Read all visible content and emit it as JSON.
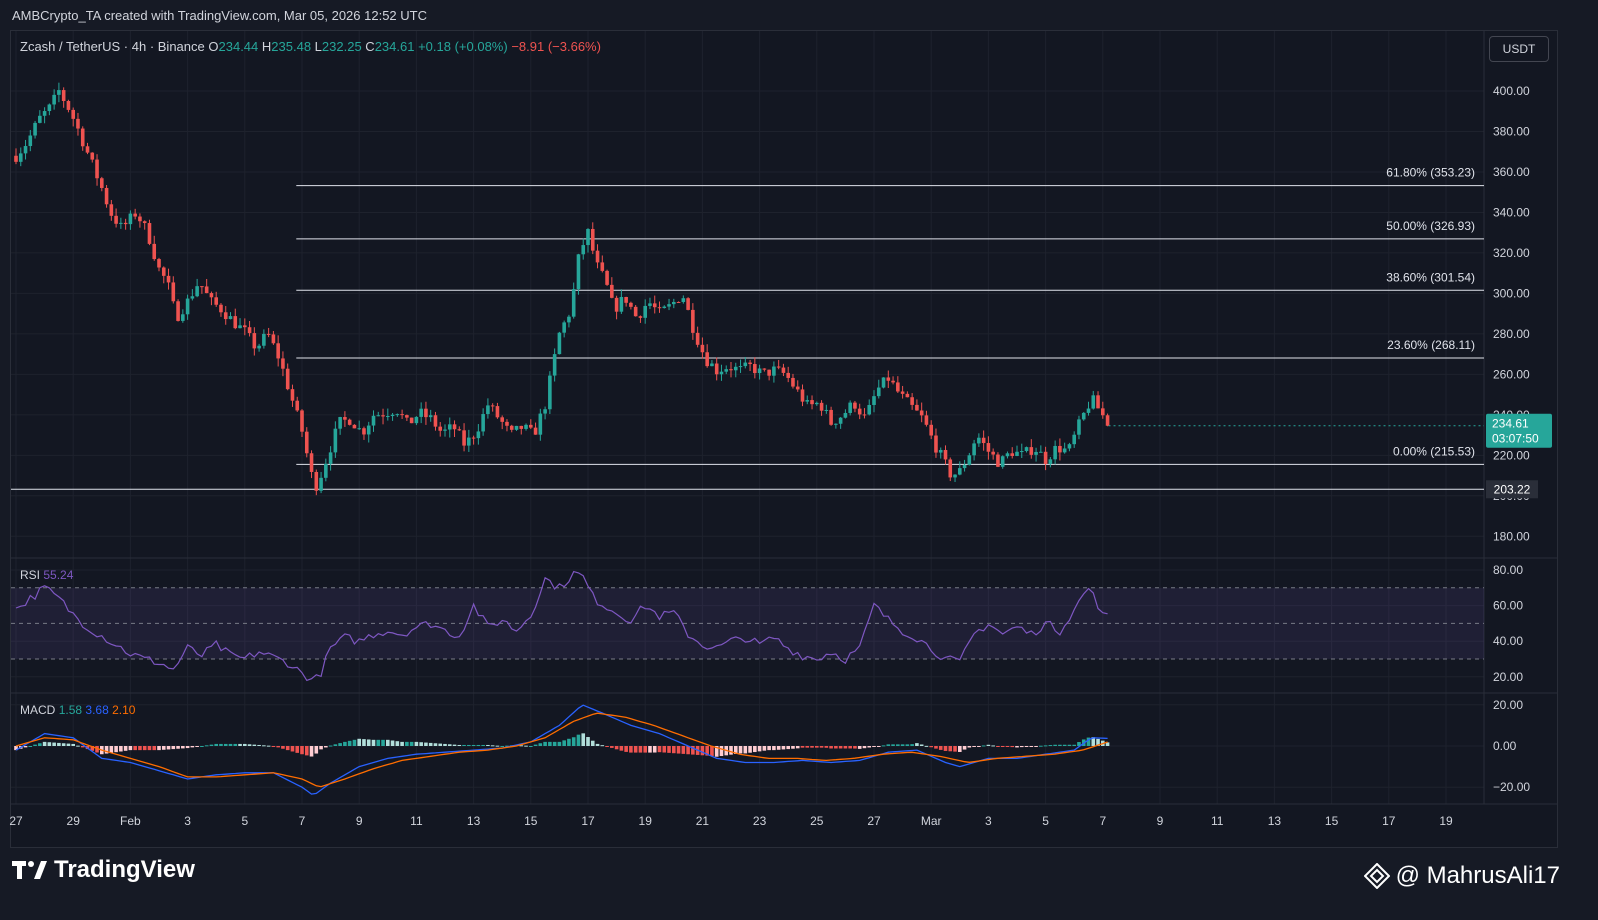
{
  "caption": "AMBCrypto_TA created with TradingView.com, Mar 05, 2026 12:52 UTC",
  "header": {
    "symbol": "Zcash / TetherUS · 4h · Binance",
    "o_label": "O",
    "o_value": "234.44",
    "h_label": "H",
    "h_value": "235.48",
    "l_label": "L",
    "l_value": "232.25",
    "c_label": "C",
    "c_value": "234.61",
    "change": "+0.18 (+0.08%)",
    "change2": "−8.91 (−3.66%)"
  },
  "currency_button": "USDT",
  "colors": {
    "up": "#26a69a",
    "down": "#ef5350",
    "rsi": "#7e57c2",
    "macd": "#2962ff",
    "signal": "#ff6d00",
    "background": "#131722"
  },
  "chart_data": [
    {
      "type": "candlestick",
      "title": "Zcash / TetherUS · 4h · Binance",
      "y_ticks": [
        "400.00",
        "380.00",
        "360.00",
        "340.00",
        "320.00",
        "300.00",
        "280.00",
        "260.00",
        "240.00",
        "220.00",
        "200.00",
        "180.00"
      ],
      "ylim": [
        170,
        415
      ],
      "x_ticks": [
        "27",
        "29",
        "Feb",
        "3",
        "5",
        "7",
        "9",
        "11",
        "13",
        "15",
        "17",
        "19",
        "21",
        "23",
        "25",
        "27",
        "Mar",
        "3",
        "5",
        "7",
        "9",
        "11",
        "13",
        "15",
        "17",
        "19"
      ],
      "x_units": "day index (0 = Jan 27)",
      "xlim": [
        0,
        51.3
      ],
      "anchors": [
        [
          0,
          368
        ],
        [
          0.4,
          375
        ],
        [
          0.8,
          386
        ],
        [
          1.2,
          392
        ],
        [
          1.5,
          400
        ],
        [
          1.9,
          390
        ],
        [
          2.2,
          380
        ],
        [
          2.6,
          366
        ],
        [
          3.0,
          352
        ],
        [
          3.3,
          340
        ],
        [
          3.7,
          332
        ],
        [
          4.2,
          340
        ],
        [
          4.6,
          330
        ],
        [
          5.0,
          312
        ],
        [
          5.3,
          305
        ],
        [
          5.6,
          288
        ],
        [
          6.0,
          296
        ],
        [
          6.4,
          306
        ],
        [
          6.8,
          296
        ],
        [
          7.2,
          292
        ],
        [
          7.6,
          286
        ],
        [
          8.0,
          281
        ],
        [
          8.4,
          273
        ],
        [
          8.8,
          280
        ],
        [
          9.2,
          268
        ],
        [
          9.6,
          250
        ],
        [
          10.0,
          232
        ],
        [
          10.3,
          212
        ],
        [
          10.45,
          204
        ],
        [
          10.6,
          208
        ],
        [
          10.9,
          220
        ],
        [
          11.3,
          236
        ],
        [
          11.7,
          238
        ],
        [
          12.1,
          231
        ],
        [
          12.5,
          240
        ],
        [
          12.9,
          241
        ],
        [
          13.3,
          243
        ],
        [
          13.7,
          235
        ],
        [
          14.1,
          241
        ],
        [
          14.5,
          238
        ],
        [
          14.9,
          231
        ],
        [
          15.3,
          234
        ],
        [
          15.7,
          225
        ],
        [
          16.1,
          232
        ],
        [
          16.5,
          245
        ],
        [
          16.9,
          238
        ],
        [
          17.3,
          230
        ],
        [
          17.7,
          234
        ],
        [
          18.1,
          230
        ],
        [
          18.5,
          245
        ],
        [
          19.0,
          280
        ],
        [
          19.4,
          292
        ],
        [
          19.7,
          320
        ],
        [
          20.0,
          330
        ],
        [
          20.3,
          314
        ],
        [
          20.6,
          306
        ],
        [
          20.9,
          292
        ],
        [
          21.3,
          298
        ],
        [
          21.7,
          288
        ],
        [
          22.1,
          296
        ],
        [
          22.5,
          290
        ],
        [
          22.9,
          294
        ],
        [
          23.3,
          300
        ],
        [
          23.7,
          282
        ],
        [
          24.1,
          268
        ],
        [
          24.5,
          262
        ],
        [
          24.9,
          264
        ],
        [
          25.3,
          262
        ],
        [
          25.7,
          264
        ],
        [
          26.1,
          260
        ],
        [
          26.5,
          262
        ],
        [
          26.9,
          260
        ],
        [
          27.3,
          252
        ],
        [
          27.7,
          244
        ],
        [
          28.1,
          246
        ],
        [
          28.5,
          236
        ],
        [
          28.9,
          240
        ],
        [
          29.3,
          246
        ],
        [
          29.7,
          238
        ],
        [
          30.1,
          252
        ],
        [
          30.5,
          258
        ],
        [
          30.9,
          250
        ],
        [
          31.3,
          244
        ],
        [
          31.7,
          238
        ],
        [
          32.1,
          226
        ],
        [
          32.4,
          218
        ],
        [
          32.7,
          210
        ],
        [
          33.0,
          212
        ],
        [
          33.3,
          220
        ],
        [
          33.6,
          230
        ],
        [
          34.0,
          222
        ],
        [
          34.4,
          216
        ],
        [
          34.8,
          222
        ],
        [
          35.2,
          220
        ],
        [
          35.6,
          224
        ],
        [
          36.0,
          218
        ],
        [
          36.4,
          224
        ],
        [
          36.8,
          222
        ],
        [
          37.2,
          236
        ],
        [
          37.6,
          248
        ],
        [
          37.9,
          242
        ],
        [
          38.2,
          234.61
        ]
      ],
      "close": "234.61",
      "countdown": "03:07:50",
      "support_level": "203.22",
      "fib_levels": [
        {
          "label": "61.80% (353.23)",
          "value": 353.23
        },
        {
          "label": "50.00% (326.93)",
          "value": 326.93
        },
        {
          "label": "38.60% (301.54)",
          "value": 301.54
        },
        {
          "label": "23.60% (268.11)",
          "value": 268.11
        },
        {
          "label": "0.00% (215.53)",
          "value": 215.53
        }
      ]
    },
    {
      "type": "line",
      "title": "RSI",
      "value": "55.24",
      "y_ticks": [
        "80.00",
        "60.00",
        "40.00",
        "20.00"
      ],
      "ylim": [
        14,
        86
      ],
      "band": [
        30,
        70
      ],
      "midline": 50,
      "anchors": [
        [
          0,
          58
        ],
        [
          0.5,
          64
        ],
        [
          1.0,
          70
        ],
        [
          1.5,
          64
        ],
        [
          2.0,
          55
        ],
        [
          2.5,
          48
        ],
        [
          3.0,
          43
        ],
        [
          3.5,
          38
        ],
        [
          4.0,
          33
        ],
        [
          4.5,
          30
        ],
        [
          5.0,
          28
        ],
        [
          5.5,
          24
        ],
        [
          6.0,
          36
        ],
        [
          6.5,
          32
        ],
        [
          7.0,
          38
        ],
        [
          7.5,
          32
        ],
        [
          8.0,
          30
        ],
        [
          8.5,
          34
        ],
        [
          9.0,
          31
        ],
        [
          9.5,
          28
        ],
        [
          10.0,
          22
        ],
        [
          10.4,
          18
        ],
        [
          10.6,
          20
        ],
        [
          11.0,
          36
        ],
        [
          11.5,
          42
        ],
        [
          12.0,
          40
        ],
        [
          12.5,
          44
        ],
        [
          13.0,
          46
        ],
        [
          13.5,
          44
        ],
        [
          14.0,
          48
        ],
        [
          14.5,
          50
        ],
        [
          15.0,
          46
        ],
        [
          15.5,
          43
        ],
        [
          16.0,
          60
        ],
        [
          16.5,
          48
        ],
        [
          17.0,
          52
        ],
        [
          17.5,
          46
        ],
        [
          18.0,
          55
        ],
        [
          18.5,
          75
        ],
        [
          19.0,
          70
        ],
        [
          19.5,
          78
        ],
        [
          19.8,
          77
        ],
        [
          20.2,
          64
        ],
        [
          20.6,
          60
        ],
        [
          21.0,
          56
        ],
        [
          21.5,
          52
        ],
        [
          22.0,
          60
        ],
        [
          22.5,
          54
        ],
        [
          23.0,
          56
        ],
        [
          23.5,
          44
        ],
        [
          24.0,
          38
        ],
        [
          24.5,
          36
        ],
        [
          25.0,
          40
        ],
        [
          25.5,
          42
        ],
        [
          26.0,
          38
        ],
        [
          26.5,
          42
        ],
        [
          27.0,
          36
        ],
        [
          27.5,
          32
        ],
        [
          28.0,
          30
        ],
        [
          28.5,
          34
        ],
        [
          29.0,
          30
        ],
        [
          29.5,
          36
        ],
        [
          30.0,
          60
        ],
        [
          30.5,
          52
        ],
        [
          31.0,
          46
        ],
        [
          31.5,
          42
        ],
        [
          32.0,
          36
        ],
        [
          32.5,
          30
        ],
        [
          33.0,
          28
        ],
        [
          33.5,
          44
        ],
        [
          34.0,
          50
        ],
        [
          34.5,
          44
        ],
        [
          35.0,
          48
        ],
        [
          35.5,
          44
        ],
        [
          36.0,
          50
        ],
        [
          36.5,
          46
        ],
        [
          37.0,
          58
        ],
        [
          37.5,
          70
        ],
        [
          38.0,
          56
        ],
        [
          38.2,
          55.24
        ]
      ]
    },
    {
      "type": "line",
      "title": "MACD",
      "values": [
        "1.58",
        "3.68",
        "2.10"
      ],
      "y_ticks": [
        "20.00",
        "0.00",
        "−20.00"
      ],
      "ylim": [
        -26,
        27
      ],
      "macd_anchors": [
        [
          0,
          -2
        ],
        [
          1.0,
          6
        ],
        [
          2.0,
          4
        ],
        [
          3.0,
          -6
        ],
        [
          4.0,
          -8
        ],
        [
          5.0,
          -12
        ],
        [
          6.0,
          -16
        ],
        [
          7.0,
          -14
        ],
        [
          8.0,
          -13
        ],
        [
          9.0,
          -13
        ],
        [
          10.0,
          -20
        ],
        [
          10.4,
          -24
        ],
        [
          11.0,
          -18
        ],
        [
          12.0,
          -10
        ],
        [
          13.0,
          -6
        ],
        [
          14.0,
          -4
        ],
        [
          15.0,
          -3
        ],
        [
          16.0,
          -2
        ],
        [
          17.0,
          -1
        ],
        [
          18.0,
          2
        ],
        [
          19.0,
          10
        ],
        [
          19.8,
          20
        ],
        [
          20.5,
          16
        ],
        [
          21.5,
          10
        ],
        [
          22.5,
          6
        ],
        [
          23.5,
          0
        ],
        [
          24.5,
          -6
        ],
        [
          25.5,
          -8
        ],
        [
          26.5,
          -8
        ],
        [
          27.5,
          -7
        ],
        [
          28.5,
          -8
        ],
        [
          29.5,
          -7
        ],
        [
          30.5,
          -3
        ],
        [
          31.5,
          -2
        ],
        [
          32.5,
          -8
        ],
        [
          33.0,
          -10
        ],
        [
          34.0,
          -6
        ],
        [
          35.0,
          -6
        ],
        [
          36.0,
          -4
        ],
        [
          37.0,
          -2
        ],
        [
          37.6,
          4
        ],
        [
          38.2,
          3.68
        ]
      ],
      "signal_anchors": [
        [
          0,
          0
        ],
        [
          1.0,
          4
        ],
        [
          2.0,
          3
        ],
        [
          3.0,
          -2
        ],
        [
          4.0,
          -6
        ],
        [
          5.0,
          -10
        ],
        [
          6.0,
          -15
        ],
        [
          7.0,
          -15
        ],
        [
          8.0,
          -14
        ],
        [
          9.0,
          -13
        ],
        [
          10.0,
          -16
        ],
        [
          10.6,
          -20
        ],
        [
          11.5,
          -16
        ],
        [
          12.5,
          -11
        ],
        [
          13.5,
          -7
        ],
        [
          14.5,
          -5
        ],
        [
          15.5,
          -3
        ],
        [
          16.5,
          -2
        ],
        [
          17.5,
          0
        ],
        [
          18.5,
          4
        ],
        [
          19.5,
          12
        ],
        [
          20.3,
          16
        ],
        [
          21.3,
          14
        ],
        [
          22.3,
          10
        ],
        [
          23.3,
          5
        ],
        [
          24.3,
          0
        ],
        [
          25.3,
          -4
        ],
        [
          26.3,
          -6
        ],
        [
          27.3,
          -6
        ],
        [
          28.3,
          -7
        ],
        [
          29.3,
          -6
        ],
        [
          30.3,
          -4
        ],
        [
          31.3,
          -3
        ],
        [
          32.3,
          -5
        ],
        [
          33.3,
          -8
        ],
        [
          34.3,
          -6
        ],
        [
          35.3,
          -5
        ],
        [
          36.3,
          -4
        ],
        [
          37.3,
          -2
        ],
        [
          38.2,
          2.1
        ]
      ]
    }
  ],
  "watermark": {
    "logo": "17",
    "brand": "TradingView"
  },
  "credit": "@ MahrusAli17"
}
